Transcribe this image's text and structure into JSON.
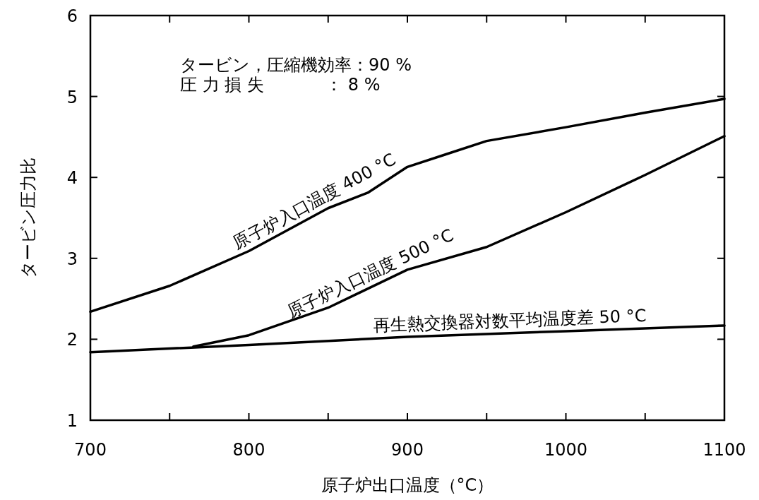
{
  "chart_data": {
    "type": "line",
    "xlabel": "原子炉出口温度（°C）",
    "ylabel": "タービン圧力比",
    "annotations": [
      "タービン，圧縮機効率：90 %",
      "圧 力 損 失 　　　 ：  8 %"
    ],
    "series": [
      {
        "name": "原子炉入口温度 400 °C",
        "color": "#000000",
        "x": [
          700,
          750,
          800,
          850,
          875,
          900,
          925,
          950,
          1000,
          1050,
          1100
        ],
        "values": [
          2.34,
          2.66,
          3.09,
          3.62,
          3.81,
          4.13,
          4.29,
          4.45,
          4.62,
          4.8,
          4.97
        ]
      },
      {
        "name": "原子炉入口温度 500 °C",
        "color": "#000000",
        "x": [
          765,
          800,
          850,
          900,
          950,
          1000,
          1050,
          1100
        ],
        "values": [
          1.91,
          2.05,
          2.39,
          2.86,
          3.14,
          3.57,
          4.03,
          4.51
        ]
      },
      {
        "name": "再生熱交換器対数平均温度差 50 °C",
        "color": "#000000",
        "x": [
          700,
          800,
          900,
          1000,
          1100
        ],
        "values": [
          1.84,
          1.93,
          2.03,
          2.1,
          2.17
        ]
      }
    ],
    "xlim": [
      700,
      1100
    ],
    "ylim": [
      1,
      6
    ],
    "xticks": [
      700,
      {
        "value": 750,
        "label": null
      },
      800,
      {
        "value": 850,
        "label": null
      },
      900,
      {
        "value": 950,
        "label": null
      },
      1000,
      {
        "value": 1050,
        "label": null
      },
      1100
    ],
    "yticks": [
      1,
      2,
      3,
      4,
      5,
      6
    ],
    "grid": false,
    "marker": "none",
    "line_style": "solid"
  }
}
